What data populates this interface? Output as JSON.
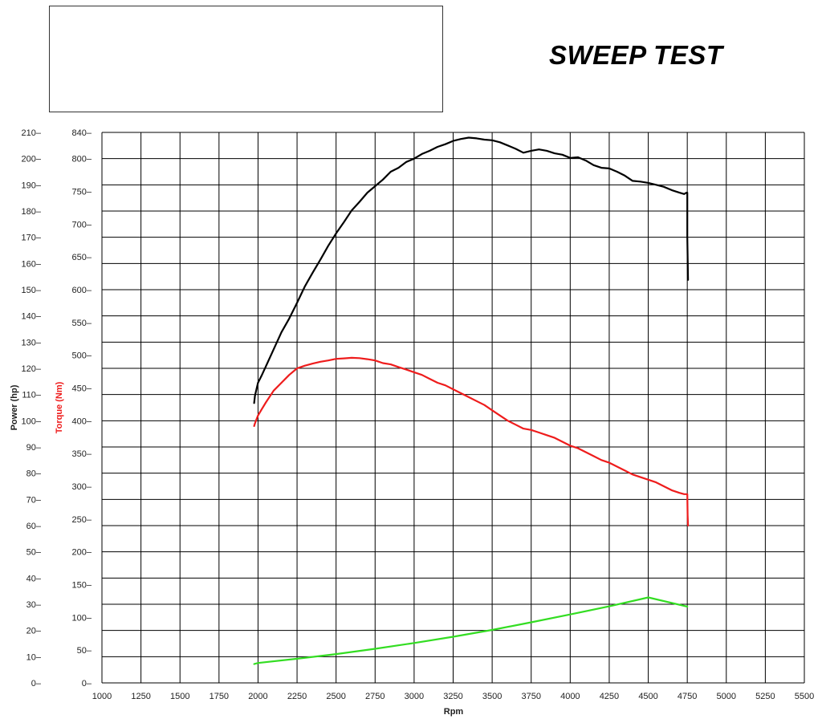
{
  "header": {
    "title": "SWEEP TEST"
  },
  "chart_data": {
    "type": "line",
    "xlabel": "Rpm",
    "ylabel_power": "Power (hp)",
    "ylabel_torque": "Torque (Nm)",
    "xlim": [
      1000,
      5500
    ],
    "ylim_power": [
      0,
      210
    ],
    "ylim_torque": [
      0,
      840
    ],
    "x_ticks": [
      "1000",
      "1250",
      "1500",
      "1750",
      "2000",
      "2250",
      "2500",
      "2750",
      "3000",
      "3250",
      "3500",
      "3750",
      "4000",
      "4250",
      "4500",
      "4750",
      "5000",
      "5250",
      "5500"
    ],
    "power_ticks": [
      "0",
      "10",
      "20",
      "30",
      "40",
      "50",
      "60",
      "70",
      "80",
      "90",
      "100",
      "110",
      "120",
      "130",
      "140",
      "150",
      "160",
      "170",
      "180",
      "190",
      "200",
      "210"
    ],
    "torque_ticks": [
      "0",
      "50",
      "100",
      "150",
      "200",
      "250",
      "300",
      "350",
      "400",
      "450",
      "500",
      "550",
      "600",
      "650",
      "700",
      "750",
      "800",
      "840"
    ],
    "grid": true,
    "colors": {
      "torque": "#000000",
      "power": "#ee1c1c",
      "third": "#33dd22",
      "grid": "#000000"
    },
    "series": [
      {
        "key": "torque",
        "axis": "torque",
        "color": "#000000",
        "x": [
          1975,
          1980,
          1990,
          2000,
          2025,
          2050,
          2100,
          2150,
          2200,
          2250,
          2300,
          2350,
          2400,
          2450,
          2500,
          2550,
          2600,
          2650,
          2700,
          2750,
          2800,
          2850,
          2900,
          2950,
          3000,
          3050,
          3100,
          3150,
          3200,
          3250,
          3300,
          3350,
          3400,
          3450,
          3500,
          3550,
          3600,
          3650,
          3700,
          3750,
          3800,
          3850,
          3900,
          3950,
          4000,
          4050,
          4100,
          4150,
          4200,
          4250,
          4300,
          4350,
          4400,
          4450,
          4500,
          4550,
          4600,
          4650,
          4700,
          4730,
          4745,
          4750,
          4750,
          4755
        ],
        "y": [
          427,
          438,
          448,
          458,
          470,
          483,
          509,
          535,
          556,
          580,
          605,
          626,
          646,
          667,
          686,
          703,
          721,
          734,
          748,
          758,
          768,
          780,
          786,
          795,
          800,
          807,
          812,
          818,
          822,
          827,
          830,
          832,
          831,
          829,
          828,
          825,
          820,
          815,
          809,
          812,
          814,
          812,
          808,
          806,
          801,
          802,
          797,
          790,
          786,
          785,
          780,
          774,
          766,
          765,
          763,
          760,
          757,
          752,
          748,
          746,
          748,
          748,
          680,
          615
        ]
      },
      {
        "key": "power",
        "axis": "power",
        "color": "#ee1c1c",
        "x": [
          1975,
          1980,
          1990,
          2000,
          2025,
          2050,
          2100,
          2150,
          2200,
          2250,
          2300,
          2350,
          2400,
          2450,
          2500,
          2550,
          2600,
          2650,
          2700,
          2750,
          2800,
          2850,
          2900,
          2950,
          3000,
          3050,
          3100,
          3150,
          3200,
          3250,
          3300,
          3350,
          3400,
          3450,
          3500,
          3550,
          3600,
          3650,
          3700,
          3750,
          3800,
          3850,
          3900,
          3950,
          4000,
          4050,
          4100,
          4150,
          4200,
          4250,
          4300,
          4350,
          4400,
          4450,
          4500,
          4550,
          4600,
          4650,
          4700,
          4730,
          4745,
          4750,
          4752,
          4755
        ],
        "y": [
          98,
          99,
          100.5,
          102,
          104.5,
          107,
          111.5,
          114.5,
          117.5,
          120,
          121,
          121.8,
          122.5,
          123,
          123.6,
          123.8,
          124,
          123.9,
          123.5,
          123,
          122,
          121.5,
          120.5,
          119.5,
          118.5,
          117.5,
          116,
          114.5,
          113.5,
          112,
          110.5,
          109,
          107.5,
          106,
          104,
          102,
          100,
          98.5,
          97,
          96.5,
          95.5,
          94.5,
          93.5,
          92,
          90.5,
          89.5,
          88,
          86.5,
          85,
          84,
          82.5,
          81,
          79.5,
          78.5,
          77.5,
          76.5,
          75,
          73.5,
          72.5,
          72,
          72,
          72,
          64,
          60
        ]
      },
      {
        "key": "third",
        "axis": "power",
        "color": "#33dd22",
        "x": [
          1975,
          2000,
          2250,
          2500,
          2750,
          3000,
          3250,
          3500,
          3750,
          4000,
          4250,
          4500,
          4750
        ],
        "y": [
          7.2,
          7.6,
          9.2,
          11,
          13,
          15.2,
          17.6,
          20.2,
          23.1,
          26.1,
          29.2,
          32.6,
          29.1
        ]
      }
    ]
  }
}
